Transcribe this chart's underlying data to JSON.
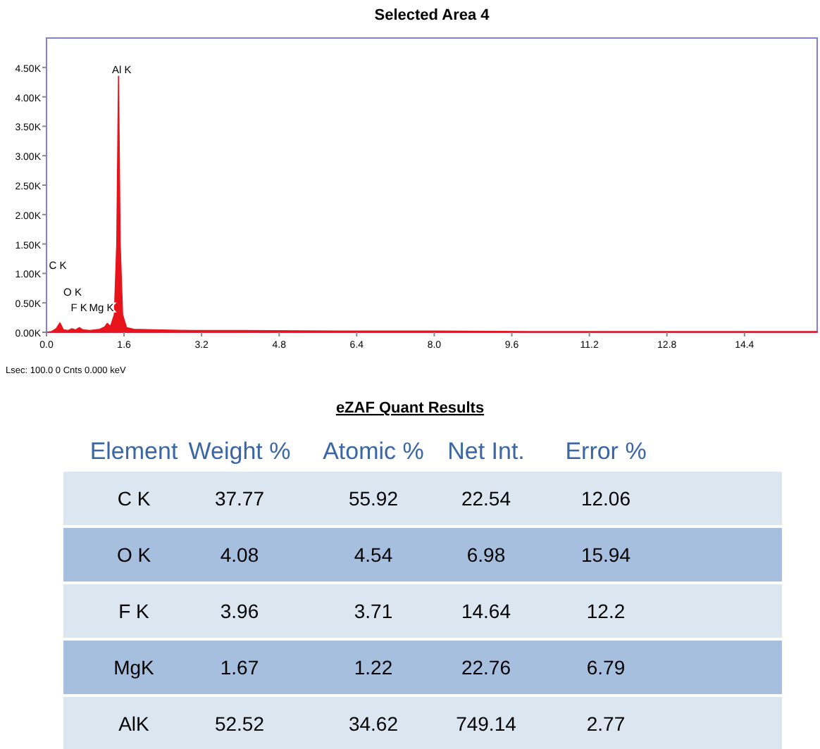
{
  "chart_data": [
    {
      "type": "area",
      "title": "Selected Area 4",
      "color": "#e8141b",
      "x": [
        0,
        0.1,
        0.2,
        0.277,
        0.35,
        0.45,
        0.525,
        0.6,
        0.677,
        0.75,
        0.9,
        1.1,
        1.2,
        1.253,
        1.32,
        1.4,
        1.45,
        1.486,
        1.52,
        1.57,
        1.65,
        1.8,
        2.2,
        3,
        4,
        6,
        8,
        10,
        12,
        15.9
      ],
      "values": [
        0,
        10,
        60,
        160,
        40,
        30,
        60,
        40,
        80,
        40,
        30,
        50,
        90,
        150,
        100,
        300,
        1500,
        4350,
        1500,
        300,
        80,
        50,
        40,
        30,
        30,
        20,
        20,
        10,
        10,
        10
      ],
      "xlim": [
        0,
        15.9
      ],
      "ylim": [
        0,
        5000
      ],
      "xticks": [
        {
          "value": 0,
          "label": "0.0"
        },
        1.6,
        3.2,
        4.8,
        6.4,
        {
          "value": 8,
          "label": "8.0"
        },
        9.6,
        11.2,
        12.8,
        14.4
      ],
      "yticks": [
        {
          "value": 0,
          "label": "0.00K"
        },
        {
          "value": 500,
          "label": "0.50K"
        },
        {
          "value": 1000,
          "label": "1.00K"
        },
        {
          "value": 1500,
          "label": "1.50K"
        },
        {
          "value": 2000,
          "label": "2.00K"
        },
        {
          "value": 2500,
          "label": "2.50K"
        },
        {
          "value": 3000,
          "label": "3.00K"
        },
        {
          "value": 3500,
          "label": "3.50K"
        },
        {
          "value": 4000,
          "label": "4.00K"
        },
        {
          "value": 4500,
          "label": "4.50K"
        }
      ],
      "annotations": [
        "C K",
        "O K",
        "F K",
        "Mg K",
        "Al K",
        "Lsec: 100.0 0 Cnts 0.000 keV"
      ]
    },
    {
      "type": "heatmap",
      "title": "eZAF Quant Results",
      "ylabel": "Element",
      "categories": [
        "Weight %",
        "Atomic %",
        "Net Int.",
        "Error %"
      ],
      "y_categories": [
        "C K",
        "O K",
        "F K",
        "MgK",
        "AlK"
      ],
      "data_labels": true,
      "cells": [
        [
          37.77,
          55.92,
          22.54,
          12.06
        ],
        [
          4.08,
          4.54,
          6.98,
          15.94
        ],
        [
          3.96,
          3.71,
          14.64,
          12.2
        ],
        [
          1.67,
          1.22,
          22.76,
          6.79
        ],
        [
          52.52,
          34.62,
          749.14,
          2.77
        ]
      ]
    }
  ]
}
